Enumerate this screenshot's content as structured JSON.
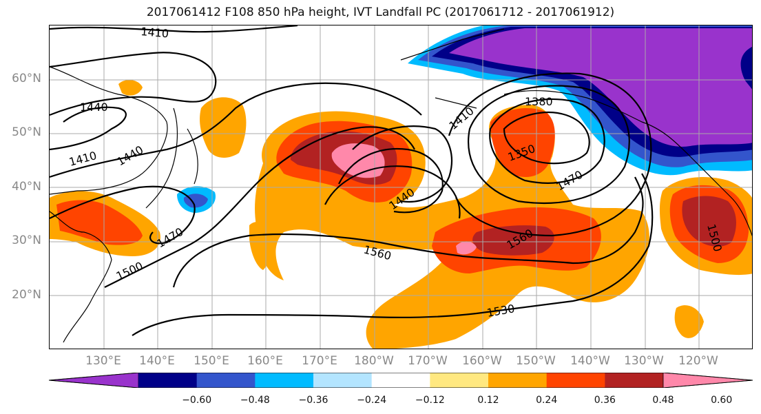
{
  "title": "2017061412 F108 850 hPa height, IVT Landfall PC (2017061712 - 2017061912)",
  "lat_labels": [
    "60°N",
    "50°N",
    "40°N",
    "30°N",
    "20°N"
  ],
  "lon_labels": [
    "130°E",
    "140°E",
    "150°E",
    "160°E",
    "170°E",
    "180°W",
    "170°W",
    "160°W",
    "150°W",
    "140°W",
    "130°W",
    "120°W"
  ],
  "contour_labels": [
    "1410",
    "1440",
    "1410",
    "1440",
    "1410",
    "1380",
    "1350",
    "1470",
    "1440",
    "1470",
    "1500",
    "1560",
    "1560",
    "1530",
    "1500"
  ],
  "colorbar": {
    "ticks": [
      "−0.60",
      "−0.48",
      "−0.36",
      "−0.24",
      "−0.12",
      "0.12",
      "0.24",
      "0.36",
      "0.48",
      "0.60"
    ],
    "colors": [
      "#9933cc",
      "#000088",
      "#3355cc",
      "#00bbff",
      "#b3e5ff",
      "#ffffff",
      "#ffe880",
      "#ffa500",
      "#ff4400",
      "#b22222",
      "#ff88aa"
    ]
  }
}
